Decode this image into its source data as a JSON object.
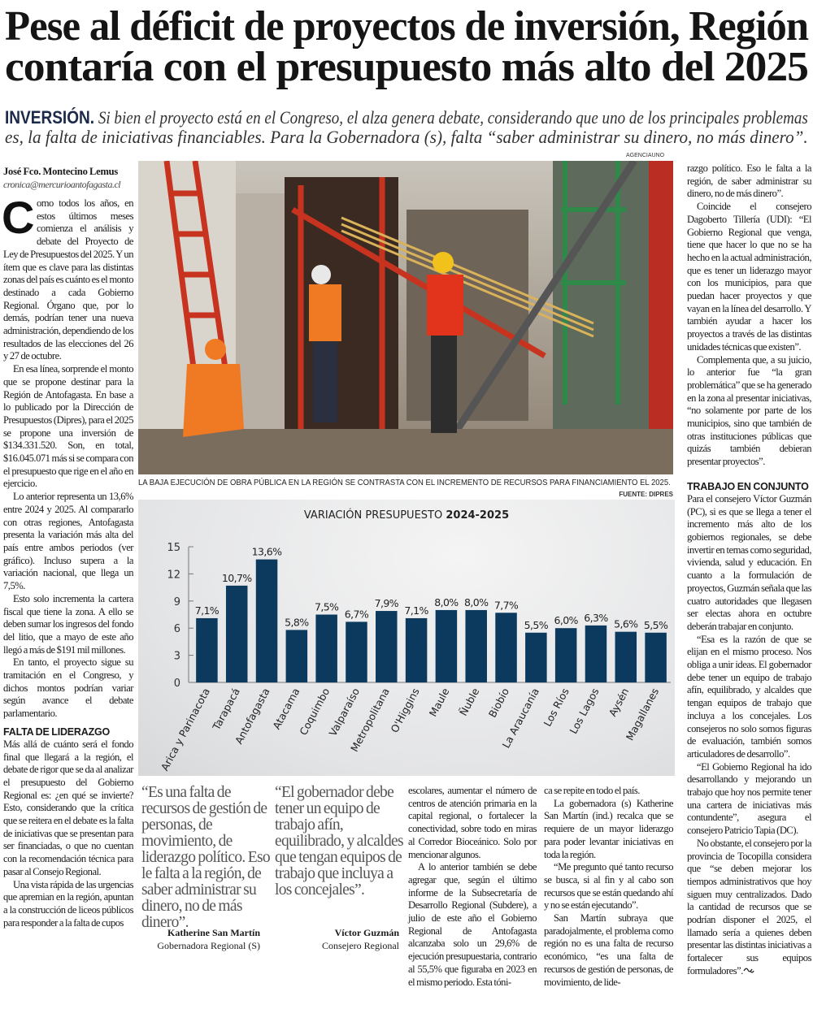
{
  "headline": [
    "Pese al déficit de proyectos de inversión, Región",
    "contaría con el presupuesto más alto del 2025"
  ],
  "deck": {
    "kicker": "INVERSIÓN.",
    "line1": " Si bien el proyecto está en el Congreso, el alza genera debate, considerando que uno de los principales problemas",
    "line2": "es, la falta de iniciativas financiables. Para la Gobernadora (s),  falta “saber administrar su dinero, no más dinero”."
  },
  "byline": {
    "author": "José Fco. Montecino Lemus",
    "email": "cronica@mercurioantofagasta.cl"
  },
  "photo": {
    "credit": "AGENCIAUNO",
    "caption": "LA BAJA EJECUCIÓN DE OBRA PÚBLICA EN LA REGIÓN SE CONTRASTA CON EL INCREMENTO DE RECURSOS PARA FINANCIAMIENTO EL 2025."
  },
  "chart_source": "FUENTE: DIPRES",
  "chart_data": {
    "type": "bar",
    "title": "VARIACIÓN PRESUPUESTO",
    "title_bold": "2024-2025",
    "categories": [
      "Arica y Parinacota",
      "Tarapacá",
      "Antofagasta",
      "Atacama",
      "Coquimbo",
      "Valparaíso",
      "Metropolitana",
      "O'Higgins",
      "Maule",
      "Ñuble",
      "Biobío",
      "La Araucanía",
      "Los Ríos",
      "Los Lagos",
      "Aysén",
      "Magallanes"
    ],
    "values": [
      7.1,
      10.7,
      13.6,
      5.8,
      7.5,
      6.7,
      7.9,
      7.1,
      8.0,
      8.0,
      7.7,
      5.5,
      6.0,
      6.3,
      5.6,
      5.5
    ],
    "data_labels": [
      "7,1%",
      "10,7%",
      "13,6%",
      "5,8%",
      "7,5%",
      "6,7%",
      "7,9%",
      "7,1%",
      "8,0%",
      "8,0%",
      "7,7%",
      "5,5%",
      "6,0%",
      "6,3%",
      "5,6%",
      "5,5%"
    ],
    "yticks": [
      0,
      3,
      6,
      9,
      12,
      15
    ],
    "ylim": [
      0,
      15
    ],
    "xlabel": "",
    "ylabel": "",
    "grid": false,
    "bar_color": "#0c3a5e"
  },
  "col1": {
    "dropcap": "C",
    "paragraphs": [
      "omo todos los años, en estos últimos meses comienza el análisis y debate del Proyecto de Ley de Presupuestos del 2025. Y un ítem que es clave para las distintas zonas del país es cuánto es el monto destinado a cada Gobierno Regional. Órgano que, por lo demás, podrían tener una nueva administración, dependiendo de los resultados de las elecciones del 26 y 27 de octubre.",
      "En esa línea, sorprende el monto que se propone destinar para la Región de Antofagasta. En base a lo publicado por la Dirección de Presupuestos (Dipres), para el 2025 se propone una inversión de $134.331.520. Son, en total, $16.045.071 más si se compara con el presupuesto que rige en el año en ejercicio.",
      "Lo anterior representa un 13,6% entre 2024 y 2025. Al compararlo con otras regiones, Antofagasta presenta la variación más alta del país entre ambos periodos (ver gráfico). Incluso supera a la variación nacional, que llega un 7,5%.",
      "Esto solo incrementa la cartera fiscal que tiene la zona. A ello se deben sumar los ingresos del fondo del litio, que a mayo de este año llegó a más de $191 mil millones.",
      "En tanto, el proyecto sigue su tramitación en el Congreso, y dichos montos podrían variar según avance el debate parlamentario."
    ],
    "subhead": "FALTA DE LIDERAZGO",
    "paragraphs2": [
      "Más allá de cuánto será el fondo final que llegará a la región, el debate de rigor que se da al analizar el presupuesto del Gobierno Regional es: ¿en qué se invierte? Esto, considerando que la crítica que se reitera en el debate es la falta de iniciativas que se presentan para ser financiadas, o que no cuentan con la recomendación técnica para pasar al Consejo Regional.",
      "Una vista rápida de las urgencias que apremian en la región, apuntan a la construcción de liceos públicos para responder a la falta de cupos"
    ]
  },
  "quotes": [
    {
      "text": "“Es una falta de recursos de gestión de personas, de movimiento, de liderazgo político. Eso le falta a la región, de saber administrar su dinero, no de más dinero”.",
      "name": "Katherine San Martín",
      "role": "Gobernadora Regional (S)"
    },
    {
      "text": "“El gobernador debe tener un equipo de trabajo afín, equilibrado, y alcaldes que tengan equipos de trabajo que incluya a los concejales”.",
      "name": "Víctor Guzmán",
      "role": "Consejero Regional"
    }
  ],
  "col2": {
    "paragraphs": [
      "escolares, aumentar el número de centros de atención primaria en la capital regional, o fortalecer la conectividad, sobre todo en miras al Corredor Bioceánico. Solo por mencionar algunos.",
      "A lo anterior también se debe agregar que, según el último informe de la Subsecretaría de Desarrollo Regional (Subdere), a julio de este año el Gobierno Regional de Antofagasta alcanzaba solo un 29,6% de ejecución presupuestaria, contrario al 55,5% que figuraba en 2023 en el mismo periodo. Esta tóni-"
    ]
  },
  "col3": {
    "paragraphs": [
      "ca se repite en todo el país.",
      "La gobernadora (s) Katherine San Martín (ind.) recalca que se requiere de un mayor liderazgo para poder levantar iniciativas en toda la región.",
      "“Me pregunto qué tanto recurso se busca, si al fin y al cabo son recursos que se están quedando ahí y no se están ejecutando”.",
      "San Martín subraya que paradojalmente, el problema como región no es una falta de recurso económico, “es una falta de recursos de gestión de personas, de movimiento, de lide-"
    ]
  },
  "col4": {
    "paragraphs": [
      "razgo político. Eso le falta a la región, de saber administrar su dinero, no de más dinero”.",
      "Coincide el consejero Dagoberto Tillería (UDI): “El Gobierno Regional que venga, tiene que hacer lo que no se ha hecho en la actual administración, que es tener un liderazgo mayor con los municipios, para que puedan hacer proyectos y que vayan en la línea del desarrollo. Y también ayudar a hacer los proyectos a través de las distintas unidades técnicas que existen”.",
      "Complementa que, a su juicio, lo anterior fue “la gran problemática” que se ha generado en la zona al presentar iniciativas, “no solamente por parte de los municipios, sino que también de otras instituciones públicas que quizás también debieran presentar proyectos”."
    ],
    "subhead": "TRABAJO EN CONJUNTO",
    "paragraphs2": [
      "Para el consejero Víctor Guzmán (PC), si es que se llega a tener el incremento más alto de los gobiernos regionales, se debe invertir en temas como seguridad, vivienda, salud y educación. En cuanto a la formulación de proyectos, Guzmán señala que las cuatro autoridades que llegasen ser electas ahora en octubre deberán trabajar en conjunto.",
      "“Esa es la razón de que se elijan en el mismo proceso. Nos obliga a unir ideas. El gobernador debe tener un equipo de trabajo afín, equilibrado, y alcaldes que tengan equipos de trabajo que incluya a los concejales. Los consejeros no solo somos figuras de evaluación, también somos articuladores de desarrollo”.",
      "“El Gobierno Regional ha ido desarrollando y mejorando un trabajo que hoy nos permite tener una cartera de iniciativas más contundente”, asegura el consejero Patricio Tapia (DC).",
      "No obstante, el consejero por la provincia de Tocopilla considera que “se deben mejorar los tiempos administrativos que hoy siguen muy centralizados. Dado la cantidad de recursos que se podrían disponer el 2025, el llamado sería a quienes deben presentar las distintas iniciativas a fortalecer sus equipos formuladores”."
    ],
    "end_mark_icon": "end-of-article-mark-icon"
  }
}
